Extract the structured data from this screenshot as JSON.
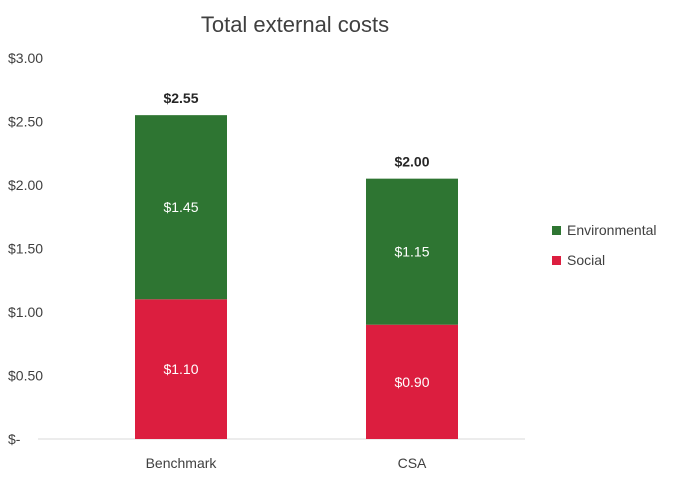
{
  "chart_data": {
    "type": "bar",
    "stacked": true,
    "title": "Total external costs",
    "categories": [
      "Benchmark",
      "CSA"
    ],
    "series": [
      {
        "name": "Social",
        "values": [
          1.1,
          0.9
        ],
        "labels": [
          "$1.10",
          "$0.90"
        ],
        "color": "#dc1e3f"
      },
      {
        "name": "Environmental",
        "values": [
          1.45,
          1.15
        ],
        "labels": [
          "$1.45",
          "$1.15"
        ],
        "color": "#2e7532"
      }
    ],
    "totals": [
      "$2.55",
      "$2.00"
    ],
    "ylim": [
      0,
      3
    ],
    "yticks": [
      0,
      0.5,
      1,
      1.5,
      2,
      2.5,
      3
    ],
    "ytick_labels": [
      "$-",
      "$0.50",
      "$1.00",
      "$1.50",
      "$2.00",
      "$2.50",
      "$3.00"
    ],
    "legend": [
      "Environmental",
      "Social"
    ],
    "legend_position": "right",
    "grid": false
  }
}
